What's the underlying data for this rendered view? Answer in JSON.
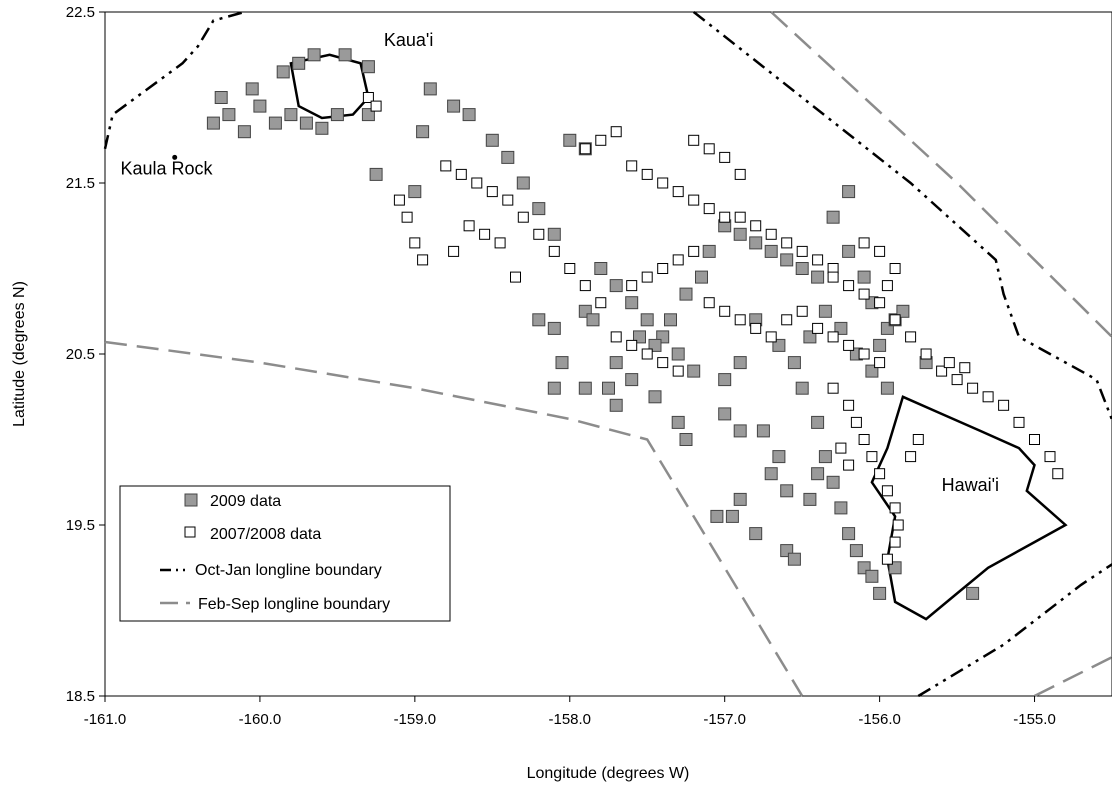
{
  "chart_data": {
    "type": "scatter",
    "title": "",
    "xlabel": "Longitude (degrees W)",
    "ylabel": "Latitude (degrees N)",
    "xlim": [
      -161.0,
      -154.5
    ],
    "ylim": [
      18.5,
      22.5
    ],
    "xticks": [
      -161.0,
      -160.0,
      -159.0,
      -158.0,
      -157.0,
      -156.0,
      -155.0
    ],
    "xtick_labels": [
      "-161.0",
      "-160.0",
      "-159.0",
      "-158.0",
      "-157.0",
      "-156.0",
      "-155.0"
    ],
    "yticks": [
      18.5,
      19.5,
      20.5,
      21.5,
      22.5
    ],
    "ytick_labels": [
      "18.5",
      "19.5",
      "20.5",
      "21.5",
      "22.5"
    ],
    "grid": false,
    "legend_position": "bottom-left",
    "series": [
      {
        "name": "2009 data",
        "kind": "points",
        "marker": "filled-square",
        "color": "#9a9a9a",
        "points": [
          [
            -160.3,
            21.85
          ],
          [
            -160.2,
            21.9
          ],
          [
            -160.1,
            21.8
          ],
          [
            -160.0,
            21.95
          ],
          [
            -159.9,
            21.85
          ],
          [
            -159.8,
            21.9
          ],
          [
            -159.7,
            21.85
          ],
          [
            -159.6,
            21.82
          ],
          [
            -159.5,
            21.9
          ],
          [
            -159.85,
            22.15
          ],
          [
            -159.75,
            22.2
          ],
          [
            -159.65,
            22.25
          ],
          [
            -159.45,
            22.25
          ],
          [
            -159.3,
            22.18
          ],
          [
            -160.25,
            22.0
          ],
          [
            -160.05,
            22.05
          ],
          [
            -159.3,
            21.9
          ],
          [
            -159.25,
            21.55
          ],
          [
            -159.0,
            21.45
          ],
          [
            -158.95,
            21.8
          ],
          [
            -158.9,
            22.05
          ],
          [
            -158.75,
            21.95
          ],
          [
            -158.65,
            21.9
          ],
          [
            -158.5,
            21.75
          ],
          [
            -158.4,
            21.65
          ],
          [
            -158.3,
            21.5
          ],
          [
            -158.2,
            21.35
          ],
          [
            -158.1,
            21.2
          ],
          [
            -158.0,
            21.75
          ],
          [
            -157.9,
            21.7
          ],
          [
            -157.8,
            21.0
          ],
          [
            -157.7,
            20.9
          ],
          [
            -157.6,
            20.8
          ],
          [
            -157.5,
            20.7
          ],
          [
            -157.4,
            20.6
          ],
          [
            -157.3,
            20.5
          ],
          [
            -157.2,
            20.4
          ],
          [
            -157.9,
            20.75
          ],
          [
            -157.85,
            20.7
          ],
          [
            -157.7,
            20.45
          ],
          [
            -157.75,
            20.3
          ],
          [
            -157.9,
            20.3
          ],
          [
            -157.45,
            20.25
          ],
          [
            -157.3,
            20.1
          ],
          [
            -157.25,
            20.0
          ],
          [
            -157.0,
            20.15
          ],
          [
            -156.9,
            20.05
          ],
          [
            -156.75,
            20.05
          ],
          [
            -157.1,
            21.1
          ],
          [
            -157.0,
            21.25
          ],
          [
            -156.9,
            21.2
          ],
          [
            -156.8,
            21.15
          ],
          [
            -156.7,
            21.1
          ],
          [
            -156.6,
            21.05
          ],
          [
            -156.5,
            21.0
          ],
          [
            -156.4,
            20.95
          ],
          [
            -156.3,
            21.3
          ],
          [
            -156.2,
            21.1
          ],
          [
            -156.1,
            20.95
          ],
          [
            -156.05,
            20.8
          ],
          [
            -156.2,
            21.45
          ],
          [
            -156.5,
            20.3
          ],
          [
            -156.4,
            20.1
          ],
          [
            -156.35,
            19.9
          ],
          [
            -156.3,
            19.75
          ],
          [
            -156.25,
            19.6
          ],
          [
            -156.2,
            19.45
          ],
          [
            -156.15,
            19.35
          ],
          [
            -156.1,
            19.25
          ],
          [
            -156.05,
            19.2
          ],
          [
            -156.0,
            19.1
          ],
          [
            -156.4,
            19.8
          ],
          [
            -156.45,
            19.65
          ],
          [
            -156.9,
            19.65
          ],
          [
            -156.95,
            19.55
          ],
          [
            -157.05,
            19.55
          ],
          [
            -156.8,
            19.45
          ],
          [
            -156.6,
            19.35
          ],
          [
            -156.55,
            19.3
          ],
          [
            -156.0,
            20.55
          ],
          [
            -155.95,
            20.65
          ],
          [
            -155.9,
            20.7
          ],
          [
            -155.85,
            20.75
          ],
          [
            -155.7,
            20.45
          ],
          [
            -155.4,
            19.1
          ],
          [
            -155.9,
            19.25
          ],
          [
            -156.65,
            19.9
          ],
          [
            -156.7,
            19.8
          ],
          [
            -156.6,
            19.7
          ],
          [
            -158.2,
            20.7
          ],
          [
            -158.1,
            20.65
          ],
          [
            -158.05,
            20.45
          ],
          [
            -158.1,
            20.3
          ],
          [
            -157.6,
            20.35
          ],
          [
            -157.7,
            20.2
          ],
          [
            -157.55,
            20.6
          ],
          [
            -157.45,
            20.55
          ],
          [
            -157.35,
            20.7
          ],
          [
            -157.25,
            20.85
          ],
          [
            -157.15,
            20.95
          ],
          [
            -156.8,
            20.7
          ],
          [
            -156.65,
            20.55
          ],
          [
            -156.55,
            20.45
          ],
          [
            -156.45,
            20.6
          ],
          [
            -156.35,
            20.75
          ],
          [
            -156.25,
            20.65
          ],
          [
            -156.15,
            20.5
          ],
          [
            -156.05,
            20.4
          ],
          [
            -155.95,
            20.3
          ],
          [
            -157.0,
            20.35
          ],
          [
            -156.9,
            20.45
          ]
        ]
      },
      {
        "name": "2007/2008 data",
        "kind": "points",
        "marker": "open-square",
        "color": "#ffffff",
        "points": [
          [
            -159.3,
            22.0
          ],
          [
            -159.25,
            21.95
          ],
          [
            -159.1,
            21.4
          ],
          [
            -159.05,
            21.3
          ],
          [
            -159.0,
            21.15
          ],
          [
            -158.95,
            21.05
          ],
          [
            -158.8,
            21.6
          ],
          [
            -158.7,
            21.55
          ],
          [
            -158.6,
            21.5
          ],
          [
            -158.5,
            21.45
          ],
          [
            -158.4,
            21.4
          ],
          [
            -158.3,
            21.3
          ],
          [
            -158.2,
            21.2
          ],
          [
            -158.1,
            21.1
          ],
          [
            -158.0,
            21.0
          ],
          [
            -157.9,
            20.9
          ],
          [
            -157.8,
            20.8
          ],
          [
            -157.9,
            21.7
          ],
          [
            -157.8,
            21.75
          ],
          [
            -157.7,
            21.8
          ],
          [
            -157.6,
            21.6
          ],
          [
            -157.5,
            21.55
          ],
          [
            -157.4,
            21.5
          ],
          [
            -157.3,
            21.45
          ],
          [
            -157.2,
            21.4
          ],
          [
            -157.1,
            21.35
          ],
          [
            -157.0,
            21.3
          ],
          [
            -156.9,
            21.3
          ],
          [
            -156.8,
            21.25
          ],
          [
            -156.7,
            21.2
          ],
          [
            -156.6,
            21.15
          ],
          [
            -156.5,
            21.1
          ],
          [
            -156.4,
            21.05
          ],
          [
            -156.3,
            21.0
          ],
          [
            -156.2,
            20.9
          ],
          [
            -156.1,
            20.85
          ],
          [
            -156.0,
            20.8
          ],
          [
            -155.9,
            20.7
          ],
          [
            -155.8,
            20.6
          ],
          [
            -155.7,
            20.5
          ],
          [
            -155.6,
            20.4
          ],
          [
            -155.5,
            20.35
          ],
          [
            -155.4,
            20.3
          ],
          [
            -155.3,
            20.25
          ],
          [
            -155.2,
            20.2
          ],
          [
            -155.1,
            20.1
          ],
          [
            -155.0,
            20.0
          ],
          [
            -154.9,
            19.9
          ],
          [
            -154.85,
            19.8
          ],
          [
            -155.55,
            20.45
          ],
          [
            -155.45,
            20.42
          ],
          [
            -156.3,
            20.3
          ],
          [
            -156.2,
            20.2
          ],
          [
            -156.15,
            20.1
          ],
          [
            -156.1,
            20.0
          ],
          [
            -156.05,
            19.9
          ],
          [
            -156.0,
            19.8
          ],
          [
            -155.95,
            19.7
          ],
          [
            -155.9,
            19.6
          ],
          [
            -155.88,
            19.5
          ],
          [
            -155.9,
            19.4
          ],
          [
            -155.95,
            19.3
          ],
          [
            -156.25,
            19.95
          ],
          [
            -156.2,
            19.85
          ],
          [
            -155.8,
            19.9
          ],
          [
            -155.75,
            20.0
          ],
          [
            -157.6,
            20.9
          ],
          [
            -157.5,
            20.95
          ],
          [
            -157.4,
            21.0
          ],
          [
            -157.3,
            21.05
          ],
          [
            -157.2,
            21.1
          ],
          [
            -157.1,
            20.8
          ],
          [
            -157.0,
            20.75
          ],
          [
            -156.9,
            20.7
          ],
          [
            -156.8,
            20.65
          ],
          [
            -156.7,
            20.6
          ],
          [
            -156.6,
            20.7
          ],
          [
            -156.5,
            20.75
          ],
          [
            -156.4,
            20.65
          ],
          [
            -156.3,
            20.6
          ],
          [
            -156.2,
            20.55
          ],
          [
            -156.1,
            20.5
          ],
          [
            -156.0,
            20.45
          ],
          [
            -157.7,
            20.6
          ],
          [
            -157.6,
            20.55
          ],
          [
            -157.5,
            20.5
          ],
          [
            -157.4,
            20.45
          ],
          [
            -157.3,
            20.4
          ],
          [
            -158.45,
            21.15
          ],
          [
            -158.55,
            21.2
          ],
          [
            -158.65,
            21.25
          ],
          [
            -158.75,
            21.1
          ],
          [
            -158.35,
            20.95
          ],
          [
            -157.2,
            21.75
          ],
          [
            -157.1,
            21.7
          ],
          [
            -157.0,
            21.65
          ],
          [
            -156.9,
            21.55
          ],
          [
            -156.1,
            21.15
          ],
          [
            -156.0,
            21.1
          ],
          [
            -155.9,
            21.0
          ],
          [
            -155.95,
            20.9
          ],
          [
            -156.3,
            20.95
          ]
        ]
      },
      {
        "name": "Oct-Jan longline boundary",
        "kind": "line",
        "style": "dash-dot-dot",
        "color": "#000000",
        "points": [
          [
            -161.0,
            21.7
          ],
          [
            -160.95,
            21.9
          ],
          [
            -160.5,
            22.2
          ],
          [
            -160.4,
            22.3
          ],
          [
            -160.3,
            22.45
          ],
          [
            -160.1,
            22.5
          ]
        ],
        "points_2": [
          [
            -157.2,
            22.5
          ],
          [
            -156.5,
            22.0
          ],
          [
            -155.8,
            21.5
          ],
          [
            -155.25,
            21.05
          ],
          [
            -155.2,
            20.85
          ],
          [
            -155.1,
            20.6
          ],
          [
            -154.6,
            20.35
          ],
          [
            -154.45,
            20.0
          ]
        ],
        "points_3": [
          [
            -155.75,
            18.5
          ],
          [
            -155.2,
            18.8
          ],
          [
            -154.7,
            19.15
          ],
          [
            -154.45,
            19.3
          ]
        ]
      },
      {
        "name": "Feb-Sep longline boundary",
        "kind": "line",
        "style": "long-dash",
        "color": "#8c8c8c",
        "points": [
          [
            -161.0,
            20.57
          ],
          [
            -160.0,
            20.45
          ],
          [
            -159.0,
            20.3
          ],
          [
            -158.0,
            20.12
          ],
          [
            -157.5,
            20.0
          ],
          [
            -156.5,
            18.5
          ]
        ],
        "points_2": [
          [
            -156.7,
            22.5
          ],
          [
            -155.5,
            21.5
          ],
          [
            -154.5,
            20.6
          ]
        ],
        "points_3": [
          [
            -155.0,
            18.5
          ],
          [
            -154.45,
            18.75
          ]
        ]
      }
    ],
    "islands": [
      {
        "name": "Kaua'i",
        "outline": [
          [
            -159.8,
            22.2
          ],
          [
            -159.55,
            22.25
          ],
          [
            -159.35,
            22.2
          ],
          [
            -159.3,
            22.0
          ],
          [
            -159.4,
            21.9
          ],
          [
            -159.6,
            21.88
          ],
          [
            -159.75,
            21.95
          ],
          [
            -159.8,
            22.2
          ]
        ]
      },
      {
        "name": "Hawai'i",
        "outline": [
          [
            -155.85,
            20.25
          ],
          [
            -155.6,
            20.15
          ],
          [
            -155.35,
            20.05
          ],
          [
            -155.1,
            19.95
          ],
          [
            -155.0,
            19.85
          ],
          [
            -155.05,
            19.7
          ],
          [
            -154.8,
            19.5
          ],
          [
            -155.0,
            19.4
          ],
          [
            -155.3,
            19.25
          ],
          [
            -155.5,
            19.1
          ],
          [
            -155.7,
            18.95
          ],
          [
            -155.9,
            19.05
          ],
          [
            -155.95,
            19.3
          ],
          [
            -155.9,
            19.55
          ],
          [
            -156.05,
            19.75
          ],
          [
            -155.95,
            19.95
          ],
          [
            -155.85,
            20.25
          ]
        ]
      }
    ],
    "annotations": [
      {
        "text": "Kaua'i",
        "x": -159.2,
        "y": 22.3
      },
      {
        "text": "Kaula Rock",
        "x": -160.9,
        "y": 21.55
      },
      {
        "text": "Hawai'i",
        "x": -155.6,
        "y": 19.7
      }
    ],
    "landmarks": [
      {
        "name": "Kaula Rock",
        "x": -160.55,
        "y": 21.65
      }
    ]
  }
}
